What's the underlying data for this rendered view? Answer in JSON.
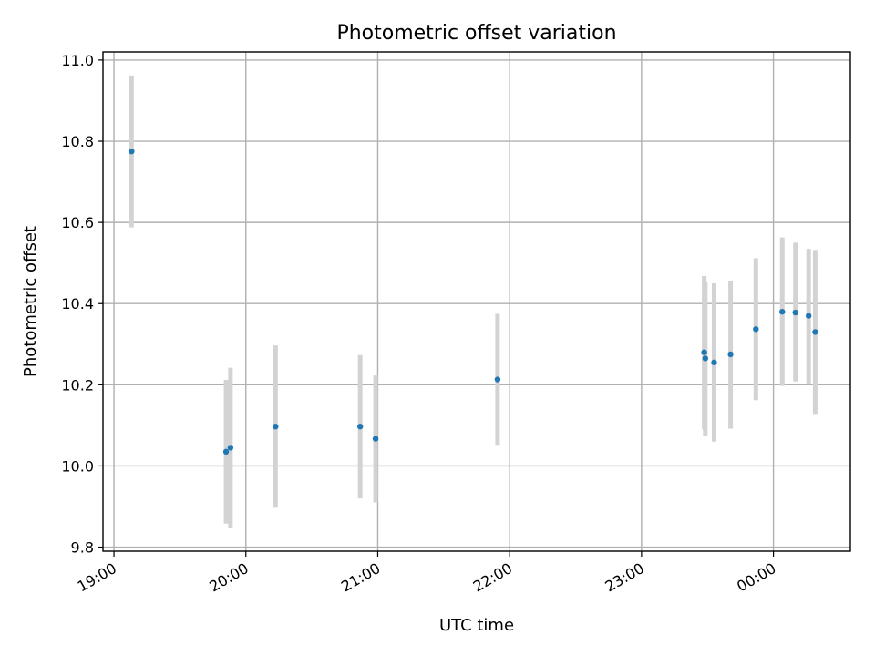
{
  "chart_data": {
    "type": "scatter",
    "title": "Photometric offset variation",
    "xlabel": "UTC time",
    "ylabel": "Photometric offset",
    "x_range": [
      "2000-01-01T18:55:00",
      "2000-01-02T00:35:00"
    ],
    "ylim": [
      9.79,
      11.02
    ],
    "grid": true,
    "x_ticks": [
      {
        "time": "2000-01-01T19:00:00",
        "label": "19:00"
      },
      {
        "time": "2000-01-01T20:00:00",
        "label": "20:00"
      },
      {
        "time": "2000-01-01T21:00:00",
        "label": "21:00"
      },
      {
        "time": "2000-01-01T22:00:00",
        "label": "22:00"
      },
      {
        "time": "2000-01-01T23:00:00",
        "label": "23:00"
      },
      {
        "time": "2000-01-02T00:00:00",
        "label": "00:00"
      }
    ],
    "y_ticks": [
      {
        "value": 9.8,
        "label": "9.8"
      },
      {
        "value": 10.0,
        "label": "10.0"
      },
      {
        "value": 10.2,
        "label": "10.2"
      },
      {
        "value": 10.4,
        "label": "10.4"
      },
      {
        "value": 10.6,
        "label": "10.6"
      },
      {
        "value": 10.8,
        "label": "10.8"
      },
      {
        "value": 11.0,
        "label": "11.0"
      }
    ],
    "marker_color": "#1f77b4",
    "errorbar_color": "#d3d3d3",
    "points": [
      {
        "time": "2000-01-01T19:08:00",
        "y": 10.775,
        "err_low": 10.588,
        "err_high": 10.962
      },
      {
        "time": "2000-01-01T19:51:00",
        "y": 10.035,
        "err_low": 9.858,
        "err_high": 10.212
      },
      {
        "time": "2000-01-01T19:53:00",
        "y": 10.045,
        "err_low": 9.848,
        "err_high": 10.242
      },
      {
        "time": "2000-01-01T20:13:30",
        "y": 10.097,
        "err_low": 9.897,
        "err_high": 10.297
      },
      {
        "time": "2000-01-01T20:52:00",
        "y": 10.097,
        "err_low": 9.92,
        "err_high": 10.273
      },
      {
        "time": "2000-01-01T20:59:00",
        "y": 10.067,
        "err_low": 9.91,
        "err_high": 10.223
      },
      {
        "time": "2000-01-01T21:54:30",
        "y": 10.213,
        "err_low": 10.052,
        "err_high": 10.375
      },
      {
        "time": "2000-01-01T23:28:30",
        "y": 10.28,
        "err_low": 10.09,
        "err_high": 10.468
      },
      {
        "time": "2000-01-01T23:29:00",
        "y": 10.265,
        "err_low": 10.075,
        "err_high": 10.455
      },
      {
        "time": "2000-01-01T23:33:00",
        "y": 10.255,
        "err_low": 10.06,
        "err_high": 10.45
      },
      {
        "time": "2000-01-01T23:40:30",
        "y": 10.275,
        "err_low": 10.092,
        "err_high": 10.457
      },
      {
        "time": "2000-01-01T23:52:00",
        "y": 10.337,
        "err_low": 10.162,
        "err_high": 10.512
      },
      {
        "time": "2000-01-02T00:04:00",
        "y": 10.38,
        "err_low": 10.197,
        "err_high": 10.563
      },
      {
        "time": "2000-01-02T00:10:00",
        "y": 10.378,
        "err_low": 10.208,
        "err_high": 10.55
      },
      {
        "time": "2000-01-02T00:16:00",
        "y": 10.37,
        "err_low": 10.203,
        "err_high": 10.535
      },
      {
        "time": "2000-01-02T00:19:00",
        "y": 10.33,
        "err_low": 10.128,
        "err_high": 10.532
      }
    ]
  }
}
